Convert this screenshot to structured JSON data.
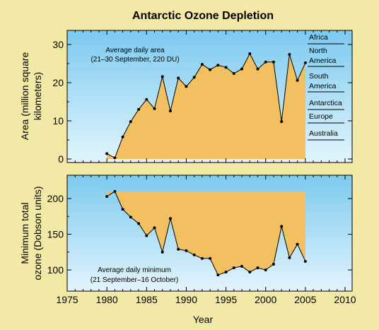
{
  "figure": {
    "title": "Antarctic Ozone Depletion",
    "xlabel": "Year",
    "colors": {
      "background": "#f3e9a6",
      "fill": "#f2c060",
      "sky_top": "#7ccaf0",
      "sky_bottom": "#e2f4fc",
      "line": "#000000"
    }
  },
  "chart_data": [
    {
      "type": "area",
      "ylabel": "Area (million square kilometers)",
      "ylabel_lines": [
        "Area (million square",
        "kilometers)"
      ],
      "annotation": [
        "Average daily area",
        "(21–30 September, 220 DU)"
      ],
      "xlim": [
        1975,
        2010
      ],
      "ylim": [
        0,
        30
      ],
      "yticks": [
        0,
        10,
        20,
        30
      ],
      "xticks": [
        1975,
        1980,
        1985,
        1990,
        1995,
        2000,
        2005,
        2010
      ],
      "x": [
        1980,
        1981,
        1982,
        1983,
        1984,
        1985,
        1986,
        1987,
        1988,
        1989,
        1990,
        1991,
        1992,
        1993,
        1994,
        1995,
        1996,
        1997,
        1998,
        1999,
        2000,
        2001,
        2002,
        2003,
        2004,
        2005
      ],
      "y": [
        1.4,
        0.3,
        5.8,
        9.8,
        13.0,
        15.6,
        13.2,
        21.6,
        12.6,
        21.2,
        19.0,
        21.4,
        24.8,
        23.4,
        24.6,
        24.0,
        22.4,
        23.6,
        27.6,
        23.6,
        25.4,
        25.4,
        9.8,
        27.4,
        20.6,
        25.2
      ],
      "reference_areas": [
        {
          "label": [
            "Africa"
          ]
        },
        {
          "label": [
            "North",
            "America"
          ]
        },
        {
          "label": [
            "South",
            "America"
          ]
        },
        {
          "label": [
            "Antarctica"
          ]
        },
        {
          "label": [
            "Europe"
          ]
        },
        {
          "label": [
            "Australia"
          ]
        }
      ]
    },
    {
      "type": "area",
      "ylabel": "Minimum total ozone (Dobson units)",
      "ylabel_lines": [
        "Minimum total",
        "ozone (Dobson units)"
      ],
      "annotation": [
        "Average daily minimum",
        "(21 September–16 October)"
      ],
      "xlim": [
        1975,
        2010
      ],
      "ylim": [
        90,
        220
      ],
      "yticks": [
        100,
        150,
        200
      ],
      "xticks": [
        1975,
        1980,
        1985,
        1990,
        1995,
        2000,
        2005,
        2010
      ],
      "baseline": 210,
      "x": [
        1980,
        1981,
        1982,
        1983,
        1984,
        1985,
        1986,
        1987,
        1988,
        1989,
        1990,
        1991,
        1992,
        1993,
        1994,
        1995,
        1996,
        1997,
        1998,
        1999,
        2000,
        2001,
        2002,
        2003,
        2004,
        2005
      ],
      "y": [
        203,
        210,
        185,
        174,
        165,
        148,
        159,
        125,
        172,
        129,
        127,
        121,
        116,
        116,
        93,
        97,
        103,
        105,
        97,
        103,
        100,
        108,
        161,
        117,
        136,
        112
      ]
    }
  ]
}
